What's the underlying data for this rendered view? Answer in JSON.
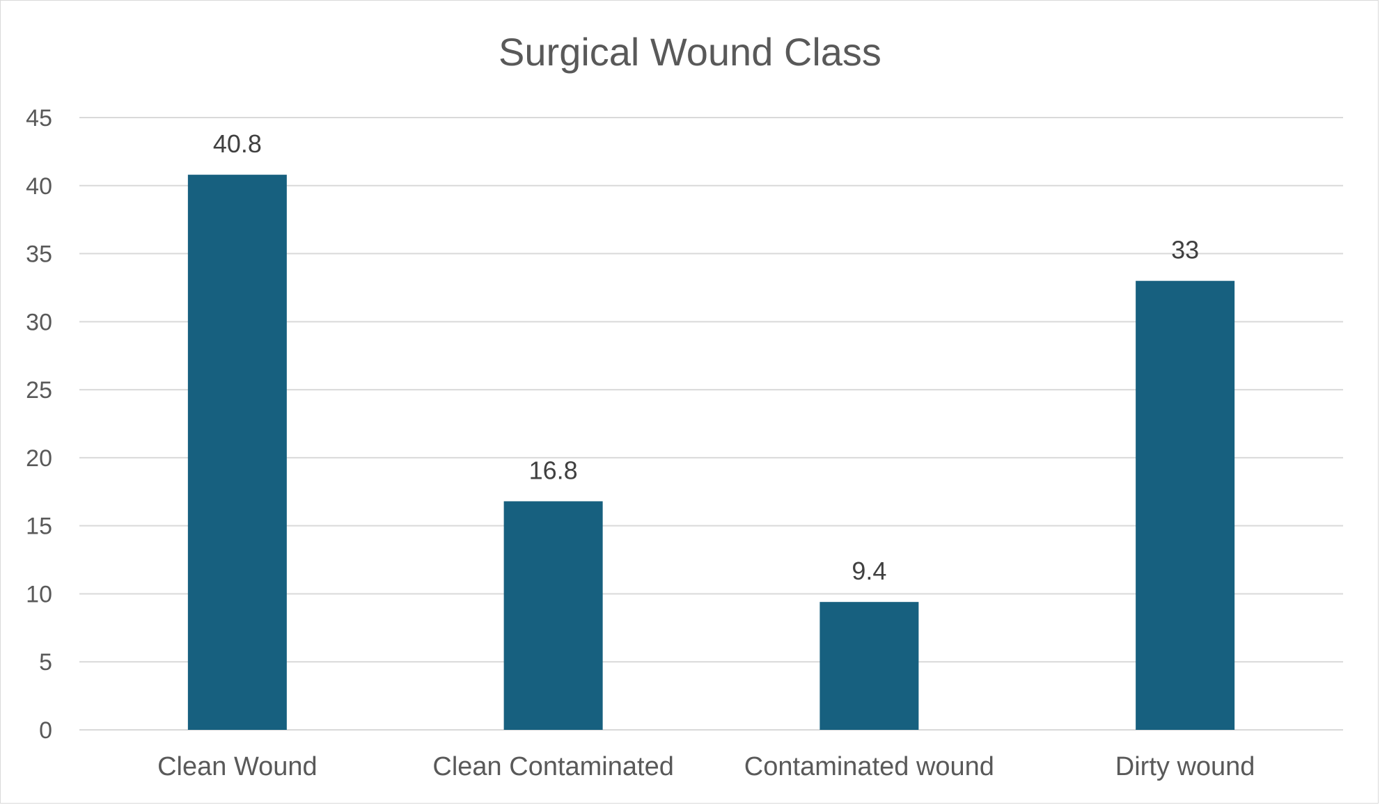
{
  "chart_data": {
    "type": "bar",
    "title": "Surgical Wound Class",
    "xlabel": "",
    "ylabel": "",
    "categories": [
      "Clean Wound",
      "Clean Contaminated",
      "Contaminated wound",
      "Dirty wound"
    ],
    "values": [
      40.8,
      16.8,
      9.4,
      33
    ],
    "data_labels": [
      "40.8",
      "16.8",
      "9.4",
      "33"
    ],
    "ylim": [
      0,
      45
    ],
    "yticks": [
      0,
      5,
      10,
      15,
      20,
      25,
      30,
      35,
      40,
      45
    ],
    "grid": true,
    "legend": "none",
    "bar_color": "#17607f"
  }
}
